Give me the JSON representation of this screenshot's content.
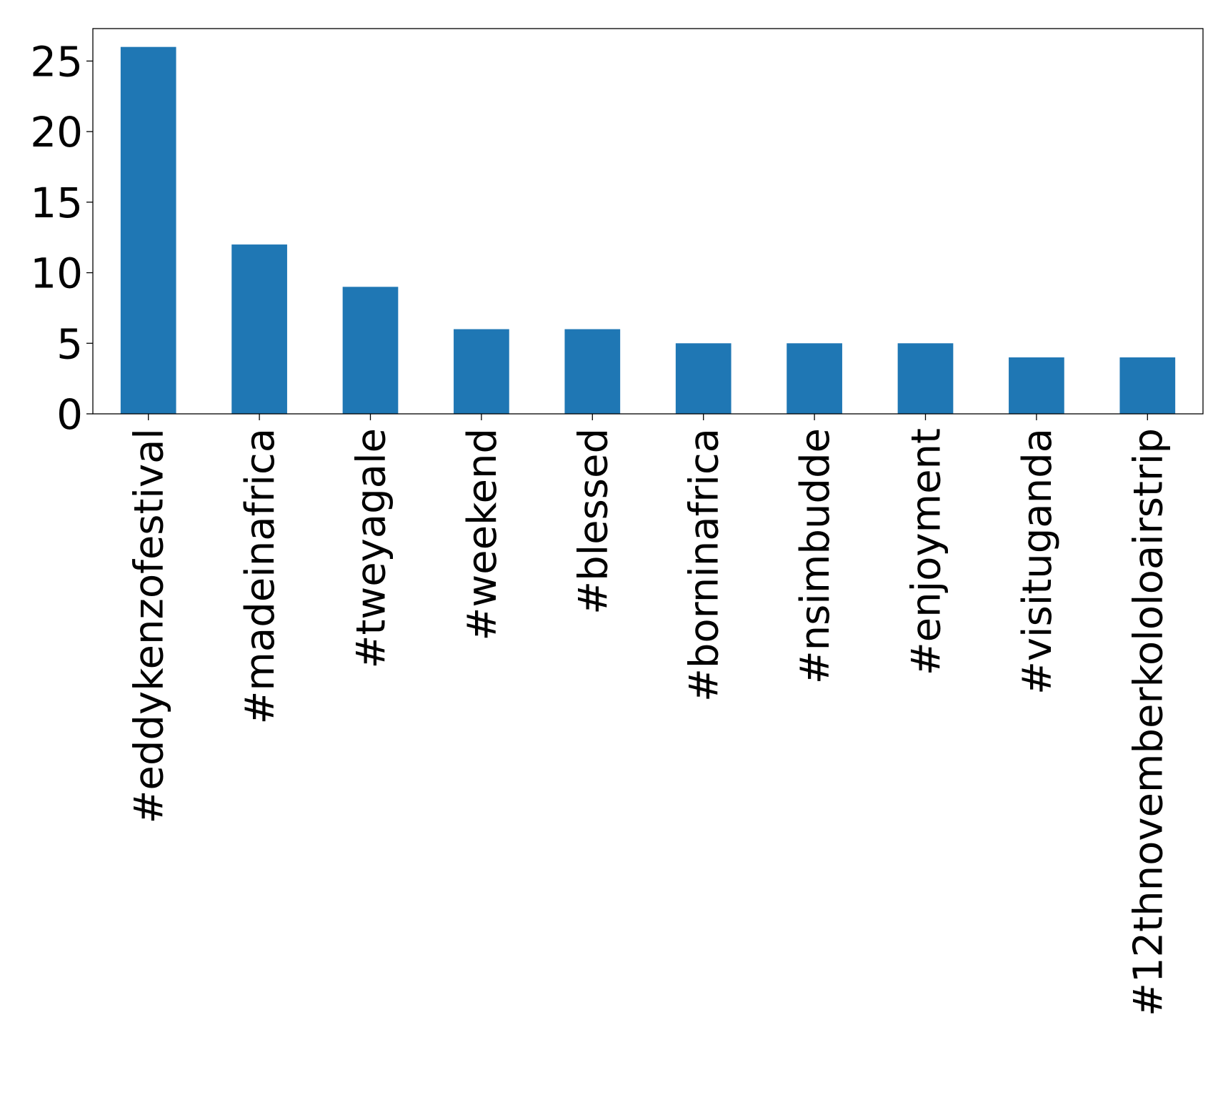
{
  "chart_data": {
    "type": "bar",
    "categories": [
      "#eddykenzofestival",
      "#madeinafrica",
      "#tweyagale",
      "#weekend",
      "#blessed",
      "#borninafrica",
      "#nsimbudde",
      "#enjoyment",
      "#visituganda",
      "#12thnovemberkololoairstrip"
    ],
    "values": [
      26,
      12,
      9,
      6,
      6,
      5,
      5,
      5,
      4,
      4
    ],
    "title": "",
    "xlabel": "",
    "ylabel": "",
    "ylim": [
      0,
      27.3
    ],
    "yticks": [
      0,
      5,
      10,
      15,
      20,
      25
    ],
    "grid": false,
    "legend": "none",
    "bar_color": "#1f77b4",
    "axis_color": "#000000"
  }
}
